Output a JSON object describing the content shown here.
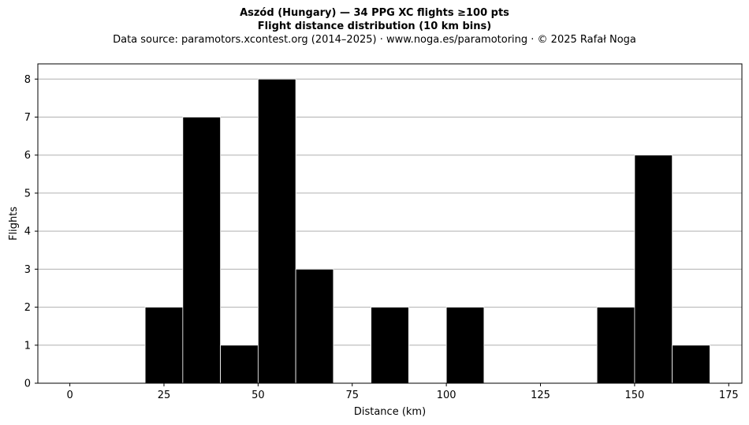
{
  "chart_data": {
    "type": "bar",
    "title": "Aszód (Hungary)  —  34 PPG XC flights ≥100 pts",
    "subtitle": "Flight distance distribution (10 km bins)",
    "source": "Data source: paramotors.xcontest.org (2014–2025)  ·  www.noga.es/paramotoring  ·  © 2025 Rafał Noga",
    "xlabel": "Distance (km)",
    "ylabel": "Flights",
    "xlim": [
      -8.5,
      178.5
    ],
    "ylim": [
      0,
      8.4
    ],
    "xticks": [
      0,
      25,
      50,
      75,
      100,
      125,
      150,
      175
    ],
    "yticks": [
      0,
      1,
      2,
      3,
      4,
      5,
      6,
      7,
      8
    ],
    "grid": "y",
    "bin_width": 10,
    "bins": [
      {
        "start": 0,
        "end": 10,
        "count": 0
      },
      {
        "start": 10,
        "end": 20,
        "count": 0
      },
      {
        "start": 20,
        "end": 30,
        "count": 2
      },
      {
        "start": 30,
        "end": 40,
        "count": 7
      },
      {
        "start": 40,
        "end": 50,
        "count": 1
      },
      {
        "start": 50,
        "end": 60,
        "count": 8
      },
      {
        "start": 60,
        "end": 70,
        "count": 3
      },
      {
        "start": 70,
        "end": 80,
        "count": 0
      },
      {
        "start": 80,
        "end": 90,
        "count": 2
      },
      {
        "start": 90,
        "end": 100,
        "count": 0
      },
      {
        "start": 100,
        "end": 110,
        "count": 2
      },
      {
        "start": 110,
        "end": 120,
        "count": 0
      },
      {
        "start": 120,
        "end": 130,
        "count": 0
      },
      {
        "start": 130,
        "end": 140,
        "count": 0
      },
      {
        "start": 140,
        "end": 150,
        "count": 2
      },
      {
        "start": 150,
        "end": 160,
        "count": 6
      },
      {
        "start": 160,
        "end": 170,
        "count": 1
      }
    ],
    "colors": {
      "bar": "#000000",
      "bar_edge": "#ffffff",
      "grid": "#b0b0b0",
      "axis": "#000000"
    }
  }
}
